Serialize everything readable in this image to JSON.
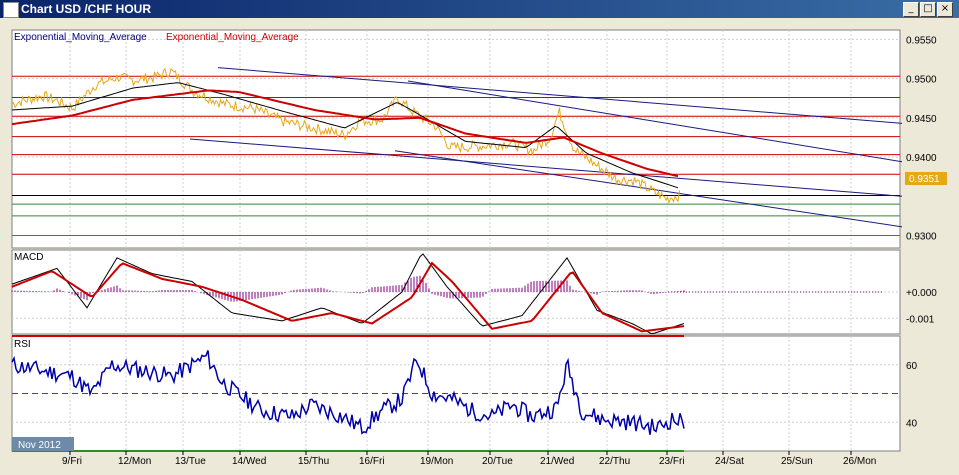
{
  "window": {
    "title": "Chart USD /CHF  HOUR",
    "buttons": {
      "minimize": "_",
      "maximize": "□",
      "close": "×"
    }
  },
  "colors": {
    "background": "#ffffff",
    "price": "#e6a817",
    "ema_fast": "#000000",
    "ema_slow": "#cc0000",
    "hline_red": "#cc0000",
    "hline_green": "#2e8b2e",
    "trendline": "#1a1a80",
    "rsi_line": "#0000aa"
  },
  "chart_data": [
    {
      "type": "line",
      "panel": "price",
      "legend": [
        "Exponential_Moving_Average",
        "Exponential_Moving_Average"
      ],
      "x_ticks": [
        "9/Fri",
        "12/Mon",
        "13/Tue",
        "14/Wed",
        "15/Thu",
        "16/Fri",
        "19/Mon",
        "20/Tue",
        "21/Wed",
        "22/Thu",
        "23/Fri",
        "24/Sat",
        "25/Sun",
        "26/Mon"
      ],
      "y_ticks": [
        "0.9550",
        "0.9500",
        "0.9450",
        "0.9400",
        "0.9351",
        "0.9300"
      ],
      "ylim": [
        0.9284,
        0.9562
      ],
      "current_price": "0.9351",
      "price_series": {
        "x": [
          0,
          0.5,
          1,
          1.5,
          2,
          2.3,
          2.6,
          3,
          3.5,
          4,
          4.5,
          5,
          5.5,
          6,
          6.5,
          7,
          7.5,
          8,
          8.5,
          9,
          9.5,
          10,
          10.5,
          11,
          11.5,
          12,
          12.5,
          13,
          13.5,
          14,
          14.5,
          15,
          15.5,
          16,
          16.5,
          17,
          17.5,
          18,
          18.5,
          19,
          19.5,
          20,
          20.5,
          21,
          21.5,
          22,
          22.5,
          23,
          23.5,
          24,
          24.5,
          25,
          25.5,
          26,
          26.5,
          27,
          27.5,
          28,
          28.5,
          29,
          29.5,
          30,
          30.5,
          31,
          31.5,
          32,
          32.5,
          33,
          33.5,
          34,
          34.5,
          35,
          35.5,
          36,
          36.5,
          37,
          37.5,
          38,
          38.5,
          39,
          39.5,
          40,
          40.5,
          41,
          41.5,
          42,
          42.5,
          43,
          43.5,
          44,
          44.5,
          45,
          45.5,
          46,
          46.5,
          47,
          47.5,
          48,
          48.5,
          49,
          49.5,
          50,
          50.5,
          51,
          51.5,
          52,
          52.5,
          53,
          53.5,
          54,
          54.5,
          55,
          55.5,
          56,
          56.5,
          57,
          57.5,
          58,
          58.5,
          59,
          59.5,
          60,
          60.5,
          61,
          61.5,
          62,
          62.5,
          63,
          63.5,
          64,
          64.5,
          65,
          65.5,
          66,
          66.5,
          67,
          67.5,
          68,
          68.5,
          69,
          69.5,
          70,
          70.5,
          71,
          71.5,
          72,
          72.5,
          73,
          73.5,
          74,
          74.5,
          75,
          75.5,
          76,
          76.5,
          77,
          77.5,
          78,
          78.5,
          79,
          79.5,
          80,
          80.5,
          81,
          81.5,
          82,
          82.5,
          83,
          83.5,
          84,
          84.5,
          85,
          85.5,
          86,
          86.5,
          87,
          87.5,
          88,
          88.5,
          89,
          89.5,
          90,
          90.5,
          91,
          91.5,
          92,
          92.5,
          93,
          93.5,
          94,
          94.5,
          95,
          95.5,
          96,
          96.5,
          97,
          97.5,
          98,
          98.5,
          99,
          99.5,
          100,
          100.5,
          101,
          101.5,
          102,
          102.5,
          103,
          103.5,
          104,
          104.5,
          105,
          105.5,
          106,
          106.5,
          107,
          107.5,
          108,
          108.5,
          109,
          109.5,
          110,
          110.5,
          111,
          111.5,
          112,
          112.5,
          113,
          113.5,
          114,
          114.5,
          115,
          115.5,
          116,
          116.5,
          117,
          117.5,
          118,
          118.5,
          119,
          119.5,
          120,
          120.5,
          121,
          121.5,
          122,
          122.5,
          123,
          123.5,
          124,
          124.5,
          125,
          125.5,
          126,
          126.5,
          127,
          127.5,
          128,
          128.5,
          129,
          129.5,
          130,
          130.5,
          131,
          131.5,
          132,
          132.5,
          133,
          133.5,
          134,
          134.5,
          135,
          135.5,
          136,
          136.5,
          137,
          137.5,
          138,
          138.5,
          139,
          139.5,
          140,
          140.5,
          141,
          141.5,
          142,
          142.5,
          143,
          143.5,
          144,
          144.5,
          145,
          145.5,
          146,
          146.5,
          147,
          147.5,
          148,
          148.5,
          149,
          149.5,
          150,
          150.5,
          151,
          151.5,
          152,
          152.5,
          153,
          153.5,
          154,
          154.5,
          155,
          155.5,
          156,
          156.5,
          157,
          157.5,
          158,
          158.5,
          159,
          159.5,
          160,
          160.5,
          161,
          161.5,
          162,
          162.5,
          163,
          163.5,
          164,
          164.5,
          165,
          165.5,
          166,
          166.5,
          167,
          167.5,
          168,
          168.5,
          169,
          169.5,
          170,
          170.5,
          171,
          171.5,
          172,
          172.5,
          173,
          173.5,
          174,
          174.5,
          175,
          175.5,
          176,
          176.5,
          177,
          177.5,
          178,
          178.5,
          179,
          179.5,
          180,
          180.5,
          181,
          181.5,
          182,
          182.5,
          183,
          183.5,
          184,
          184.5,
          185,
          185.5,
          186,
          186.5,
          187,
          187.5,
          188,
          188.5,
          189,
          189.5,
          190,
          190.5,
          191,
          191.5,
          192,
          192.5,
          193,
          193.5,
          194,
          194.5,
          195,
          195.5,
          196,
          196.5,
          197,
          197.5,
          198,
          198.5,
          199,
          199.5,
          200
        ],
        "y": []
      },
      "price_anchors": [
        [
          0,
          0.9468
        ],
        [
          20,
          0.9478
        ],
        [
          30,
          0.9472
        ],
        [
          40,
          0.9462
        ],
        [
          55,
          0.9492
        ],
        [
          70,
          0.9502
        ],
        [
          80,
          0.9498
        ],
        [
          95,
          0.9502
        ],
        [
          105,
          0.951
        ],
        [
          120,
          0.9484
        ],
        [
          140,
          0.9468
        ],
        [
          160,
          0.9462
        ],
        [
          180,
          0.9445
        ],
        [
          200,
          0.9437
        ],
        [
          220,
          0.9428
        ],
        [
          230,
          0.9446
        ],
        [
          245,
          0.9448
        ],
        [
          255,
          0.9475
        ],
        [
          265,
          0.9458
        ],
        [
          280,
          0.944
        ],
        [
          290,
          0.9412
        ],
        [
          310,
          0.9414
        ],
        [
          330,
          0.9418
        ],
        [
          345,
          0.9408
        ],
        [
          356,
          0.9425
        ],
        [
          362,
          0.9458
        ],
        [
          372,
          0.941
        ],
        [
          385,
          0.9392
        ],
        [
          400,
          0.9372
        ],
        [
          412,
          0.937
        ],
        [
          425,
          0.9355
        ],
        [
          433,
          0.9347
        ],
        [
          442,
          0.9351
        ]
      ],
      "ema_slow_anchors": [
        [
          0,
          0.9442
        ],
        [
          40,
          0.9453
        ],
        [
          80,
          0.9473
        ],
        [
          130,
          0.9485
        ],
        [
          150,
          0.9483
        ],
        [
          200,
          0.946
        ],
        [
          240,
          0.9448
        ],
        [
          270,
          0.945
        ],
        [
          300,
          0.943
        ],
        [
          340,
          0.9418
        ],
        [
          365,
          0.9425
        ],
        [
          390,
          0.9405
        ],
        [
          420,
          0.9385
        ],
        [
          442,
          0.9375
        ]
      ],
      "ema_fast_anchors": [
        [
          0,
          0.946
        ],
        [
          40,
          0.9465
        ],
        [
          80,
          0.9488
        ],
        [
          110,
          0.9495
        ],
        [
          140,
          0.948
        ],
        [
          180,
          0.9458
        ],
        [
          220,
          0.9437
        ],
        [
          255,
          0.947
        ],
        [
          275,
          0.9448
        ],
        [
          300,
          0.942
        ],
        [
          340,
          0.9412
        ],
        [
          360,
          0.944
        ],
        [
          380,
          0.9405
        ],
        [
          410,
          0.938
        ],
        [
          442,
          0.936
        ]
      ],
      "hlines_red": [
        0.9503,
        0.9476,
        0.9452,
        0.9426,
        0.9403,
        0.9378
      ],
      "hlines_green": [
        0.934,
        0.9325,
        0.93
      ],
      "hline_black": 0.9351,
      "trendlines": [
        {
          "from": [
            206,
            0.9514
          ],
          "to": [
            890,
            0.9443
          ]
        },
        {
          "from": [
            396,
            0.9497
          ],
          "to": [
            890,
            0.9394
          ]
        },
        {
          "from": [
            178,
            0.9423
          ],
          "to": [
            890,
            0.935
          ]
        },
        {
          "from": [
            383,
            0.9408
          ],
          "to": [
            890,
            0.9311
          ]
        }
      ]
    },
    {
      "type": "line",
      "panel": "macd",
      "label": "MACD",
      "y_ticks": [
        "+0.000",
        "-0.001"
      ],
      "ylim": [
        -0.0016,
        0.0016
      ],
      "signal_anchors": [
        [
          0,
          0.0002
        ],
        [
          40,
          0.0008
        ],
        [
          80,
          -0.0002
        ],
        [
          110,
          0.0011
        ],
        [
          150,
          0.0005
        ],
        [
          190,
          0.0002
        ],
        [
          230,
          -0.0003
        ],
        [
          280,
          -0.0011
        ],
        [
          320,
          -0.0008
        ],
        [
          360,
          -0.0012
        ],
        [
          400,
          -0.0002
        ],
        [
          420,
          0.0011
        ],
        [
          440,
          0.0004
        ],
        [
          480,
          -0.0014
        ],
        [
          520,
          -0.0011
        ],
        [
          560,
          0.0008
        ],
        [
          590,
          -0.0008
        ],
        [
          630,
          -0.0015
        ],
        [
          672,
          -0.0013
        ]
      ],
      "macd_anchors": [
        [
          0,
          0.0003
        ],
        [
          45,
          0.0009
        ],
        [
          75,
          -0.0006
        ],
        [
          105,
          0.0013
        ],
        [
          140,
          0.0007
        ],
        [
          180,
          0.0004
        ],
        [
          220,
          -0.0008
        ],
        [
          270,
          -0.0011
        ],
        [
          310,
          -0.0006
        ],
        [
          350,
          -0.0012
        ],
        [
          390,
          0.0
        ],
        [
          410,
          0.0015
        ],
        [
          435,
          0.0002
        ],
        [
          470,
          -0.0013
        ],
        [
          510,
          -0.0009
        ],
        [
          555,
          0.0013
        ],
        [
          585,
          -0.0007
        ],
        [
          620,
          -0.0012
        ],
        [
          640,
          -0.0016
        ],
        [
          672,
          -0.0012
        ]
      ]
    },
    {
      "type": "line",
      "panel": "rsi",
      "label": "RSI",
      "y_ticks": [
        "60",
        "40"
      ],
      "ylim": [
        30,
        70
      ],
      "levels": {
        "upper": 70,
        "mid": 50,
        "lower": 30
      },
      "rsi_anchors": [
        [
          0,
          60
        ],
        [
          30,
          58
        ],
        [
          60,
          56
        ],
        [
          80,
          50
        ],
        [
          100,
          60
        ],
        [
          130,
          58
        ],
        [
          160,
          56
        ],
        [
          180,
          60
        ],
        [
          195,
          63
        ],
        [
          210,
          54
        ],
        [
          225,
          50
        ],
        [
          250,
          44
        ],
        [
          280,
          42
        ],
        [
          300,
          46
        ],
        [
          330,
          42
        ],
        [
          350,
          38
        ],
        [
          370,
          44
        ],
        [
          390,
          48
        ],
        [
          405,
          62
        ],
        [
          420,
          50
        ],
        [
          440,
          48
        ],
        [
          460,
          44
        ],
        [
          480,
          42
        ],
        [
          500,
          46
        ],
        [
          520,
          42
        ],
        [
          545,
          45
        ],
        [
          555,
          60
        ],
        [
          570,
          44
        ],
        [
          590,
          41
        ],
        [
          620,
          40
        ],
        [
          645,
          38
        ],
        [
          660,
          41
        ],
        [
          672,
          40
        ]
      ]
    }
  ],
  "period_label": "Nov 2012"
}
